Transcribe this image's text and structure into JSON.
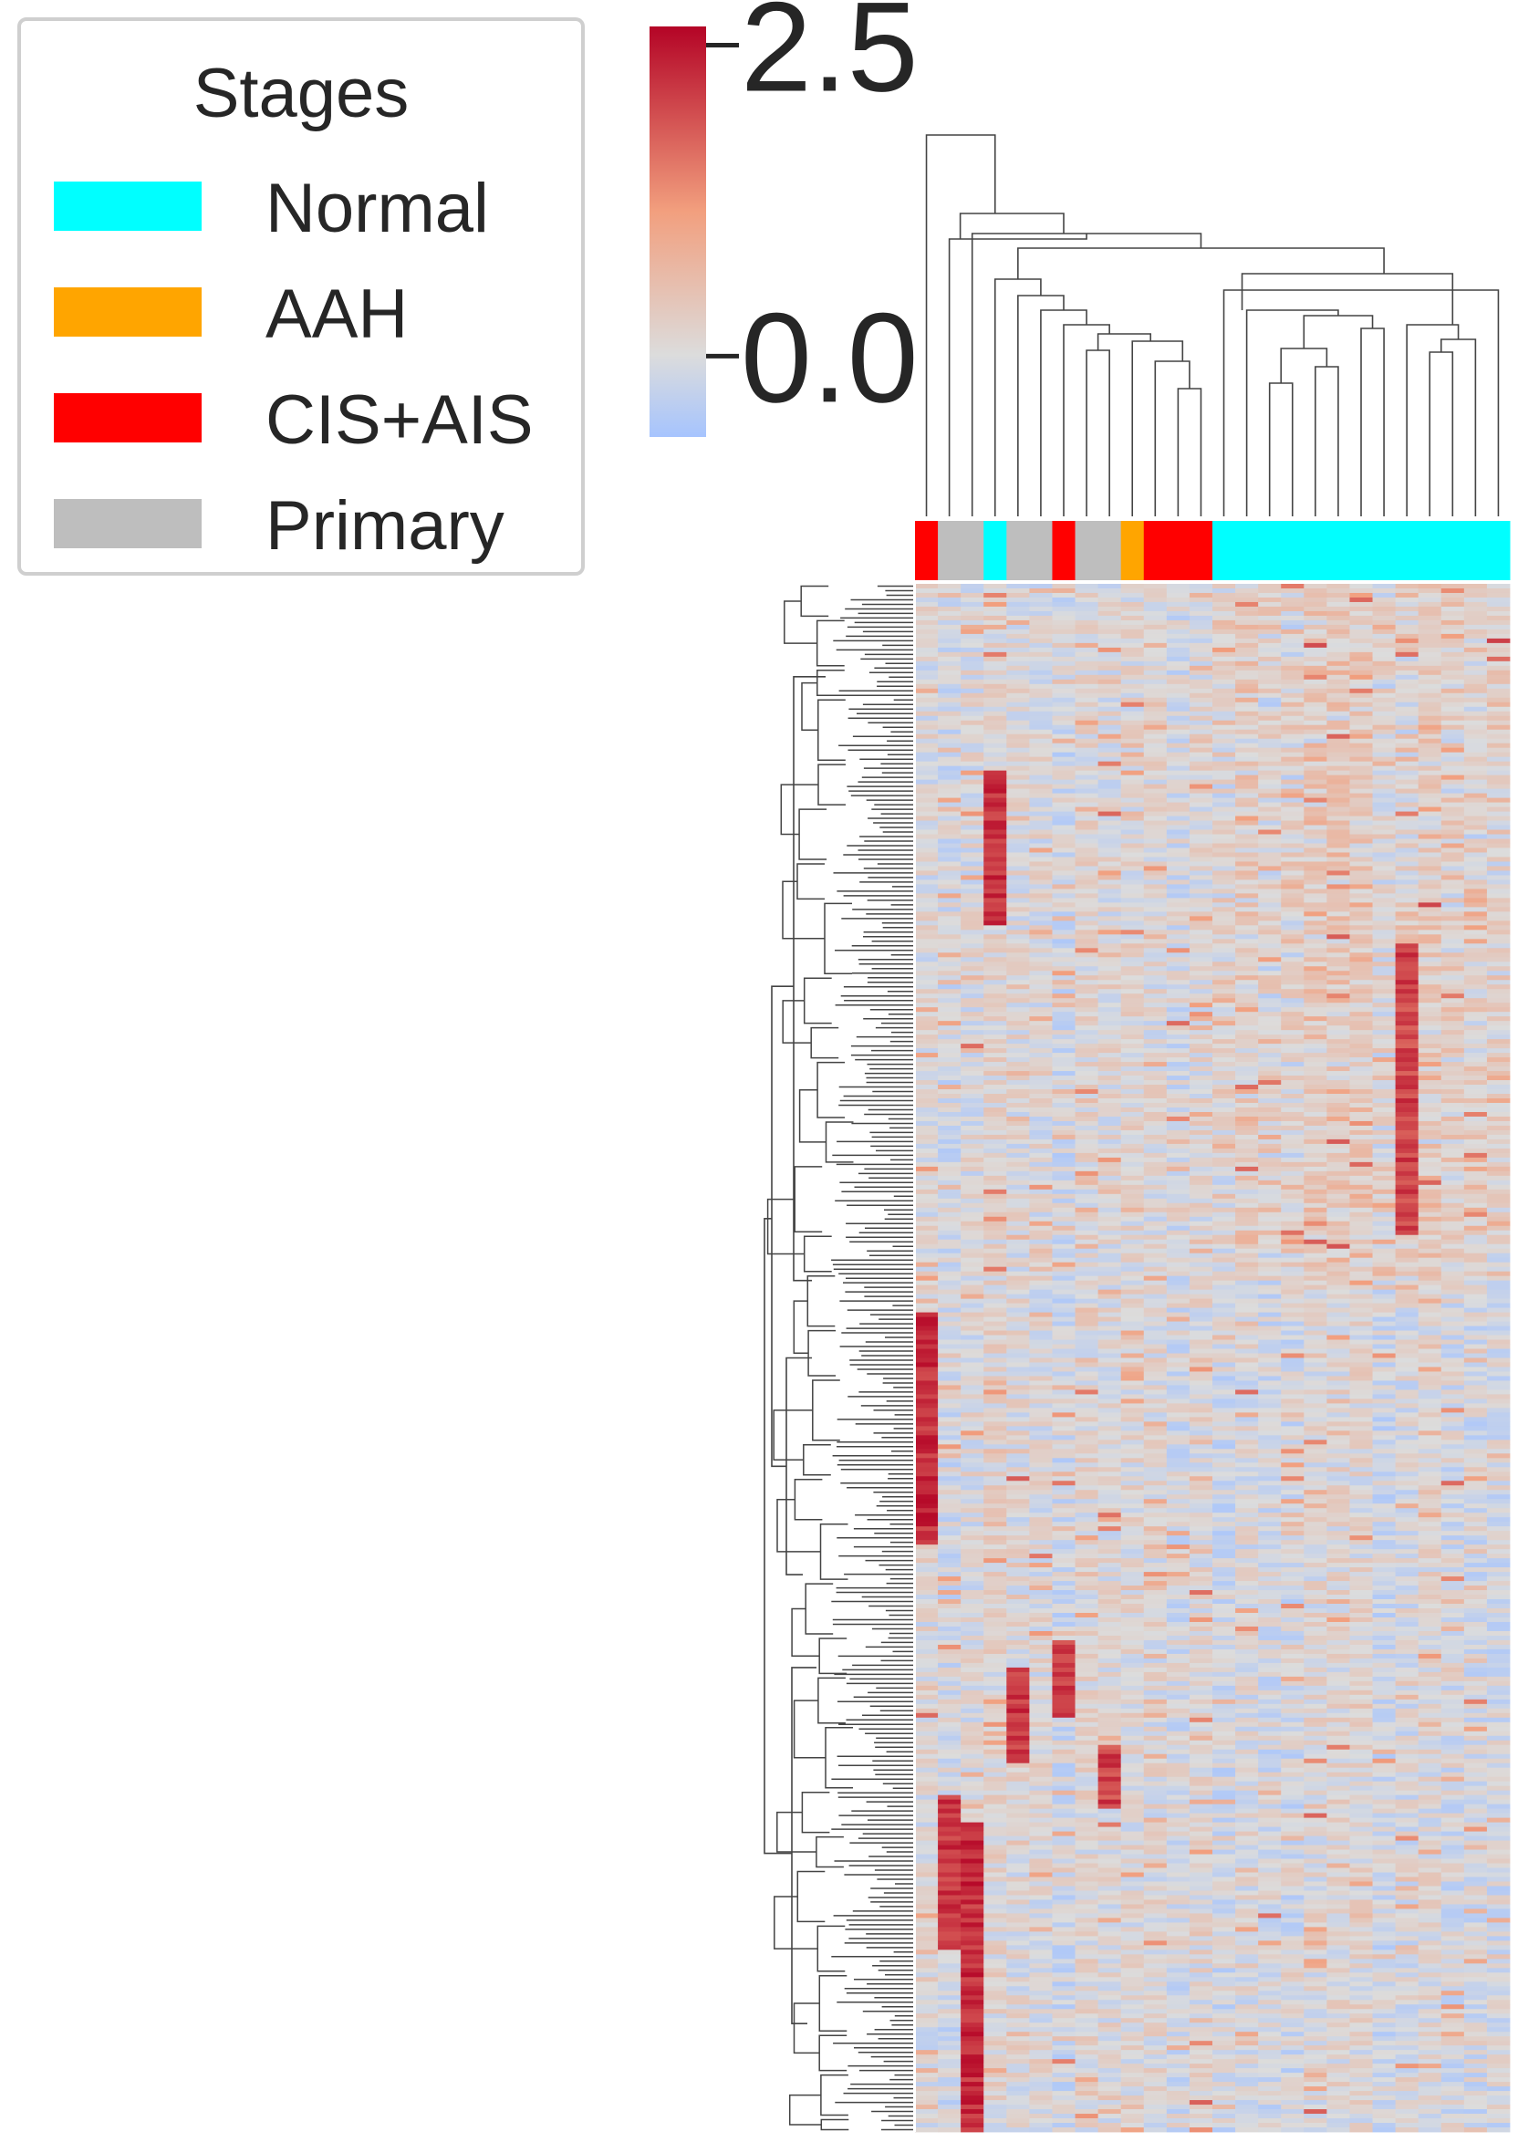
{
  "legend": {
    "title": "Stages",
    "items": [
      {
        "label": "Normal",
        "color": "#00ffff"
      },
      {
        "label": "AAH",
        "color": "#ffa500"
      },
      {
        "label": "CIS+AIS",
        "color": "#ff0000"
      },
      {
        "label": "Primary",
        "color": "#bebebe"
      }
    ]
  },
  "colorbar": {
    "colormap": "coolwarm",
    "ticks": [
      {
        "value": 2.5,
        "label": "2.5"
      },
      {
        "value": 0.0,
        "label": "0.0"
      }
    ],
    "range": [
      -0.65,
      2.65
    ],
    "colors": [
      "#3b4cc0",
      "#dddddd",
      "#b40426"
    ]
  },
  "chart_data": {
    "type": "heatmap",
    "title": "",
    "xlabel": "",
    "ylabel": "",
    "column_count": 26,
    "row_dendrogram": true,
    "column_dendrogram": true,
    "column_stages": [
      "CIS+AIS",
      "Primary",
      "Primary",
      "Normal",
      "Primary",
      "Primary",
      "CIS+AIS",
      "Primary",
      "Primary",
      "AAH",
      "CIS+AIS",
      "CIS+AIS",
      "CIS+AIS",
      "Normal",
      "Normal",
      "Normal",
      "Normal",
      "Normal",
      "Normal",
      "Normal",
      "Normal",
      "Normal",
      "Normal",
      "Normal",
      "Normal",
      "Normal"
    ],
    "value_range": [
      -0.65,
      2.65
    ],
    "pattern_note_blocks": [
      {
        "rows": [
          0.12,
          0.22
        ],
        "columns": [
          3
        ],
        "value": 2.6
      },
      {
        "rows": [
          0.47,
          0.62
        ],
        "columns": [
          0
        ],
        "value": 2.6
      },
      {
        "rows": [
          0.23,
          0.42
        ],
        "columns": [
          21
        ],
        "value": 2.4
      },
      {
        "rows": [
          0.8,
          1.0
        ],
        "columns": [
          2
        ],
        "value": 2.6
      },
      {
        "rows": [
          0.78,
          0.88
        ],
        "columns": [
          1
        ],
        "value": 2.5
      },
      {
        "rows": [
          0.7,
          0.76
        ],
        "columns": [
          4
        ],
        "value": 2.5
      },
      {
        "rows": [
          0.68,
          0.73
        ],
        "columns": [
          6
        ],
        "value": 2.4
      },
      {
        "rows": [
          0.75,
          0.79
        ],
        "columns": [
          8
        ],
        "value": 2.4
      }
    ]
  }
}
